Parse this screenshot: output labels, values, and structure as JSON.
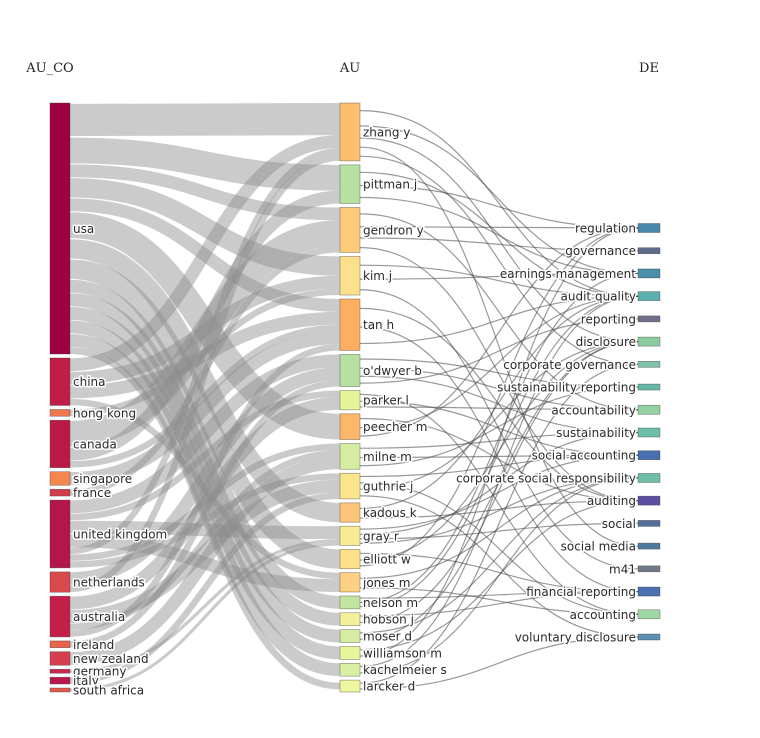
{
  "chart_data": {
    "type": "sankey",
    "columns": [
      "AU_CO",
      "AU",
      "DE"
    ],
    "nodes": {
      "AU_CO": [
        {
          "name": "usa",
          "color": "#9e0142"
        },
        {
          "name": "china",
          "color": "#c11e47"
        },
        {
          "name": "hong kong",
          "color": "#f07a4e"
        },
        {
          "name": "canada",
          "color": "#bb1a46"
        },
        {
          "name": "singapore",
          "color": "#f4874f"
        },
        {
          "name": "france",
          "color": "#d13c4b"
        },
        {
          "name": "united kingdom",
          "color": "#b5164a"
        },
        {
          "name": "netherlands",
          "color": "#d84a4c"
        },
        {
          "name": "australia",
          "color": "#c41f48"
        },
        {
          "name": "ireland",
          "color": "#e9634b"
        },
        {
          "name": "new zealand",
          "color": "#d53f4f"
        },
        {
          "name": "germany",
          "color": "#c52a4b"
        },
        {
          "name": "italy",
          "color": "#b8174a"
        },
        {
          "name": "south africa",
          "color": "#e05a4e"
        }
      ],
      "AU": [
        {
          "name": "zhang y",
          "color": "#fdbf6f"
        },
        {
          "name": "pittman j",
          "color": "#b7e1a1"
        },
        {
          "name": "gendron y",
          "color": "#fecb7a"
        },
        {
          "name": "kim j",
          "color": "#fde08b"
        },
        {
          "name": "tan h",
          "color": "#fdae61"
        },
        {
          "name": "o'dwyer b",
          "color": "#b7e1a1"
        },
        {
          "name": "parker l",
          "color": "#e6f598"
        },
        {
          "name": "peecher m",
          "color": "#fdb768"
        },
        {
          "name": "milne m",
          "color": "#d4eda0"
        },
        {
          "name": "guthrie j",
          "color": "#fae58c"
        },
        {
          "name": "kadous k",
          "color": "#fdc57a"
        },
        {
          "name": "gray r",
          "color": "#f7eb93"
        },
        {
          "name": "elliott w",
          "color": "#fee08b"
        },
        {
          "name": "jones m",
          "color": "#fdd084"
        },
        {
          "name": "nelson m",
          "color": "#c2e6a0"
        },
        {
          "name": "hobson j",
          "color": "#f3f19a"
        },
        {
          "name": "moser d",
          "color": "#d4eda0"
        },
        {
          "name": "williamson m",
          "color": "#e9f59a"
        },
        {
          "name": "kachelmeier s",
          "color": "#d9f0a3"
        },
        {
          "name": "larcker d",
          "color": "#eef69f"
        }
      ],
      "DE": [
        {
          "name": "regulation",
          "color": "#4a86a8"
        },
        {
          "name": "governance",
          "color": "#5e6a8a"
        },
        {
          "name": "earnings management",
          "color": "#4a8fa8"
        },
        {
          "name": "audit quality",
          "color": "#5bb0ae"
        },
        {
          "name": "reporting",
          "color": "#6f6f8a"
        },
        {
          "name": "disclosure",
          "color": "#8ccca0"
        },
        {
          "name": "corporate governance",
          "color": "#7fc4a5"
        },
        {
          "name": "sustainability reporting",
          "color": "#66b8a6"
        },
        {
          "name": "accountability",
          "color": "#93d2a0"
        },
        {
          "name": "sustainability",
          "color": "#6cc0a8"
        },
        {
          "name": "social accounting",
          "color": "#4a6fb0"
        },
        {
          "name": "corporate social responsibility",
          "color": "#6fbfa8"
        },
        {
          "name": "auditing",
          "color": "#5a4fa0"
        },
        {
          "name": "social",
          "color": "#556f9a"
        },
        {
          "name": "social media",
          "color": "#4f7aa0"
        },
        {
          "name": "m41",
          "color": "#707a88"
        },
        {
          "name": "financial reporting",
          "color": "#4b6fb0"
        },
        {
          "name": "accounting",
          "color": "#9fd8a4"
        },
        {
          "name": "voluntary disclosure",
          "color": "#5f8fb0"
        }
      ]
    },
    "links": [
      {
        "source": "usa",
        "target": "zhang y",
        "value": 5
      },
      {
        "source": "usa",
        "target": "pittman j",
        "value": 4
      },
      {
        "source": "usa",
        "target": "gendron y",
        "value": 2
      },
      {
        "source": "usa",
        "target": "kim j",
        "value": 3
      },
      {
        "source": "usa",
        "target": "tan h",
        "value": 2
      },
      {
        "source": "usa",
        "target": "peecher m",
        "value": 4
      },
      {
        "source": "usa",
        "target": "kadous k",
        "value": 3
      },
      {
        "source": "usa",
        "target": "elliott w",
        "value": 3
      },
      {
        "source": "usa",
        "target": "nelson m",
        "value": 2
      },
      {
        "source": "usa",
        "target": "hobson j",
        "value": 2
      },
      {
        "source": "usa",
        "target": "moser d",
        "value": 2
      },
      {
        "source": "usa",
        "target": "williamson m",
        "value": 2
      },
      {
        "source": "usa",
        "target": "kachelmeier s",
        "value": 2
      },
      {
        "source": "usa",
        "target": "larcker d",
        "value": 1
      },
      {
        "source": "china",
        "target": "zhang y",
        "value": 2
      },
      {
        "source": "china",
        "target": "kim j",
        "value": 2
      },
      {
        "source": "china",
        "target": "tan h",
        "value": 2
      },
      {
        "source": "china",
        "target": "jones m",
        "value": 1
      },
      {
        "source": "hong kong",
        "target": "kim j",
        "value": 1
      },
      {
        "source": "canada",
        "target": "gendron y",
        "value": 4
      },
      {
        "source": "canada",
        "target": "pittman j",
        "value": 2
      },
      {
        "source": "canada",
        "target": "tan h",
        "value": 1
      },
      {
        "source": "singapore",
        "target": "tan h",
        "value": 2
      },
      {
        "source": "france",
        "target": "gendron y",
        "value": 1
      },
      {
        "source": "united kingdom",
        "target": "o'dwyer b",
        "value": 2
      },
      {
        "source": "united kingdom",
        "target": "parker l",
        "value": 1
      },
      {
        "source": "united kingdom",
        "target": "gray r",
        "value": 2
      },
      {
        "source": "united kingdom",
        "target": "jones m",
        "value": 2
      },
      {
        "source": "united kingdom",
        "target": "zhang y",
        "value": 1
      },
      {
        "source": "united kingdom",
        "target": "milne m",
        "value": 1
      },
      {
        "source": "united kingdom",
        "target": "guthrie j",
        "value": 1
      },
      {
        "source": "netherlands",
        "target": "o'dwyer b",
        "value": 2
      },
      {
        "source": "netherlands",
        "target": "zhang y",
        "value": 1
      },
      {
        "source": "australia",
        "target": "parker l",
        "value": 2
      },
      {
        "source": "australia",
        "target": "guthrie j",
        "value": 2
      },
      {
        "source": "australia",
        "target": "milne m",
        "value": 1
      },
      {
        "source": "australia",
        "target": "tan h",
        "value": 1
      },
      {
        "source": "ireland",
        "target": "o'dwyer b",
        "value": 1
      },
      {
        "source": "new zealand",
        "target": "milne m",
        "value": 2
      },
      {
        "source": "germany",
        "target": "gray r",
        "value": 0.5
      },
      {
        "source": "italy",
        "target": "guthrie j",
        "value": 1
      },
      {
        "source": "south africa",
        "target": "gray r",
        "value": 0.5
      },
      {
        "source": "zhang y",
        "target": "audit quality",
        "value": 0.5
      },
      {
        "source": "zhang y",
        "target": "earnings management",
        "value": 0.5
      },
      {
        "source": "zhang y",
        "target": "disclosure",
        "value": 0.3
      },
      {
        "source": "zhang y",
        "target": "social media",
        "value": 0.3
      },
      {
        "source": "zhang y",
        "target": "corporate governance",
        "value": 0.3
      },
      {
        "source": "pittman j",
        "target": "audit quality",
        "value": 0.5
      },
      {
        "source": "pittman j",
        "target": "regulation",
        "value": 0.4
      },
      {
        "source": "pittman j",
        "target": "earnings management",
        "value": 0.4
      },
      {
        "source": "gendron y",
        "target": "accountability",
        "value": 0.4
      },
      {
        "source": "gendron y",
        "target": "regulation",
        "value": 0.4
      },
      {
        "source": "gendron y",
        "target": "governance",
        "value": 0.3
      },
      {
        "source": "gendron y",
        "target": "auditing",
        "value": 0.3
      },
      {
        "source": "kim j",
        "target": "audit quality",
        "value": 0.5
      },
      {
        "source": "kim j",
        "target": "earnings management",
        "value": 0.3
      },
      {
        "source": "kim j",
        "target": "m41",
        "value": 0.3
      },
      {
        "source": "tan h",
        "target": "auditing",
        "value": 0.4
      },
      {
        "source": "tan h",
        "target": "financial reporting",
        "value": 0.4
      },
      {
        "source": "tan h",
        "target": "audit quality",
        "value": 0.3
      },
      {
        "source": "o'dwyer b",
        "target": "sustainability reporting",
        "value": 0.4
      },
      {
        "source": "o'dwyer b",
        "target": "accountability",
        "value": 0.4
      },
      {
        "source": "o'dwyer b",
        "target": "sustainability",
        "value": 0.3
      },
      {
        "source": "o'dwyer b",
        "target": "reporting",
        "value": 0.3
      },
      {
        "source": "parker l",
        "target": "accounting",
        "value": 0.4
      },
      {
        "source": "parker l",
        "target": "social accounting",
        "value": 0.3
      },
      {
        "source": "parker l",
        "target": "accountability",
        "value": 0.3
      },
      {
        "source": "peecher m",
        "target": "auditing",
        "value": 0.4
      },
      {
        "source": "peecher m",
        "target": "audit quality",
        "value": 0.4
      },
      {
        "source": "peecher m",
        "target": "regulation",
        "value": 0.3
      },
      {
        "source": "milne m",
        "target": "sustainability",
        "value": 0.4
      },
      {
        "source": "milne m",
        "target": "social accounting",
        "value": 0.4
      },
      {
        "source": "milne m",
        "target": "sustainability reporting",
        "value": 0.3
      },
      {
        "source": "guthrie j",
        "target": "social accounting",
        "value": 0.3
      },
      {
        "source": "guthrie j",
        "target": "accounting",
        "value": 0.3
      },
      {
        "source": "guthrie j",
        "target": "disclosure",
        "value": 0.3
      },
      {
        "source": "guthrie j",
        "target": "voluntary disclosure",
        "value": 0.3
      },
      {
        "source": "kadous k",
        "target": "audit quality",
        "value": 0.4
      },
      {
        "source": "kadous k",
        "target": "auditing",
        "value": 0.3
      },
      {
        "source": "gray r",
        "target": "social accounting",
        "value": 0.4
      },
      {
        "source": "gray r",
        "target": "sustainability",
        "value": 0.3
      },
      {
        "source": "gray r",
        "target": "social",
        "value": 0.3
      },
      {
        "source": "gray r",
        "target": "corporate social responsibility",
        "value": 0.3
      },
      {
        "source": "elliott w",
        "target": "financial reporting",
        "value": 0.4
      },
      {
        "source": "elliott w",
        "target": "disclosure",
        "value": 0.3
      },
      {
        "source": "elliott w",
        "target": "regulation",
        "value": 0.3
      },
      {
        "source": "jones m",
        "target": "corporate social responsibility",
        "value": 0.4
      },
      {
        "source": "jones m",
        "target": "accounting",
        "value": 0.3
      },
      {
        "source": "nelson m",
        "target": "financial reporting",
        "value": 0.3
      },
      {
        "source": "nelson m",
        "target": "earnings management",
        "value": 0.3
      },
      {
        "source": "nelson m",
        "target": "audit quality",
        "value": 0.3
      },
      {
        "source": "hobson j",
        "target": "financial reporting",
        "value": 0.3
      },
      {
        "source": "hobson j",
        "target": "disclosure",
        "value": 0.3
      },
      {
        "source": "moser d",
        "target": "corporate social responsibility",
        "value": 0.3
      },
      {
        "source": "moser d",
        "target": "disclosure",
        "value": 0.3
      },
      {
        "source": "williamson m",
        "target": "auditing",
        "value": 0.3
      },
      {
        "source": "williamson m",
        "target": "regulation",
        "value": 0.3
      },
      {
        "source": "kachelmeier s",
        "target": "audit quality",
        "value": 0.3
      },
      {
        "source": "kachelmeier s",
        "target": "corporate social responsibility",
        "value": 0.3
      },
      {
        "source": "larcker d",
        "target": "corporate governance",
        "value": 0.3
      },
      {
        "source": "larcker d",
        "target": "voluntary disclosure",
        "value": 0.3
      }
    ]
  }
}
